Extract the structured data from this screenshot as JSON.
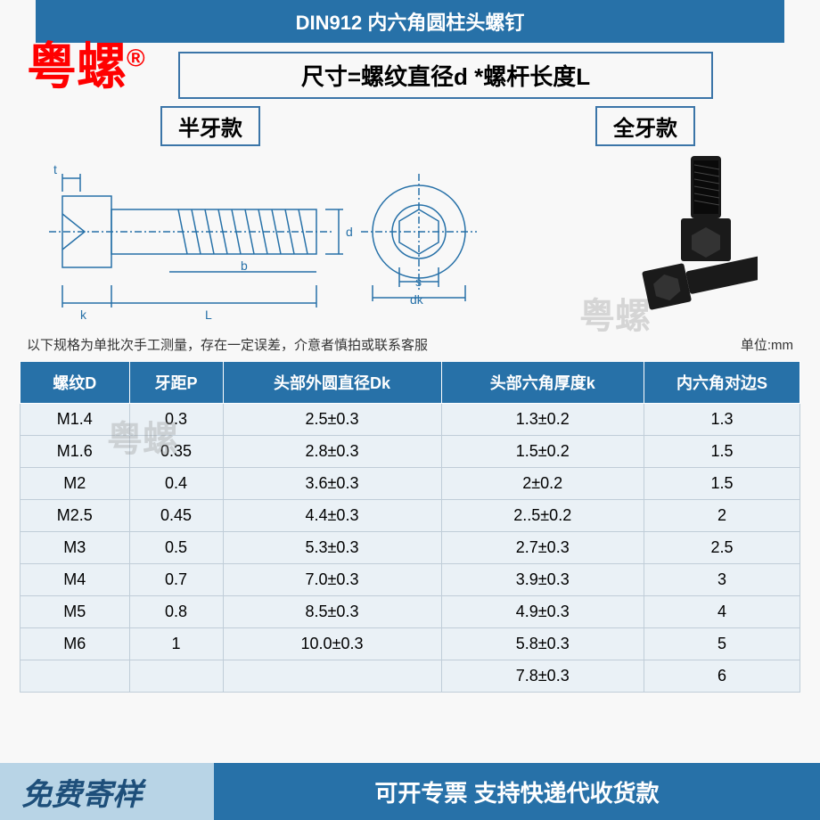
{
  "header": {
    "title": "DIN912 内六角圆柱头螺钉"
  },
  "brand": {
    "text": "粤螺",
    "symbol": "®"
  },
  "formula": "尺寸=螺纹直径d *螺杆长度L",
  "tags": {
    "left": "半牙款",
    "right": "全牙款"
  },
  "dims": {
    "t": "t",
    "k": "k",
    "L": "L",
    "b": "b",
    "d": "d",
    "s": "s",
    "dk": "dk"
  },
  "note_left": "以下规格为单批次手工测量，存在一定误差，介意者慎拍或联系客服",
  "note_right": "单位:mm",
  "watermark_gray": "粤螺",
  "table": {
    "columns": [
      "螺纹D",
      "牙距P",
      "头部外圆直径Dk",
      "头部六角厚度k",
      "内六角对边S"
    ],
    "col_widths": [
      "14%",
      "12%",
      "28%",
      "26%",
      "20%"
    ],
    "rows": [
      [
        "M1.4",
        "0.3",
        "2.5±0.3",
        "1.3±0.2",
        "1.3"
      ],
      [
        "M1.6",
        "0.35",
        "2.8±0.3",
        "1.5±0.2",
        "1.5"
      ],
      [
        "M2",
        "0.4",
        "3.6±0.3",
        "2±0.2",
        "1.5"
      ],
      [
        "M2.5",
        "0.45",
        "4.4±0.3",
        "2..5±0.2",
        "2"
      ],
      [
        "M3",
        "0.5",
        "5.3±0.3",
        "2.7±0.3",
        "2.5"
      ],
      [
        "M4",
        "0.7",
        "7.0±0.3",
        "3.9±0.3",
        "3"
      ],
      [
        "M5",
        "0.8",
        "8.5±0.3",
        "4.9±0.3",
        "4"
      ],
      [
        "M6",
        "1",
        "10.0±0.3",
        "5.8±0.3",
        "5"
      ],
      [
        "",
        "",
        "",
        "7.8±0.3",
        "6"
      ]
    ]
  },
  "footer": {
    "left": "免费寄样",
    "right": "可开专票 支持快递代收货款"
  },
  "colors": {
    "primary": "#2771a8",
    "row_bg": "#eaf1f6",
    "brand": "#ff0000"
  }
}
